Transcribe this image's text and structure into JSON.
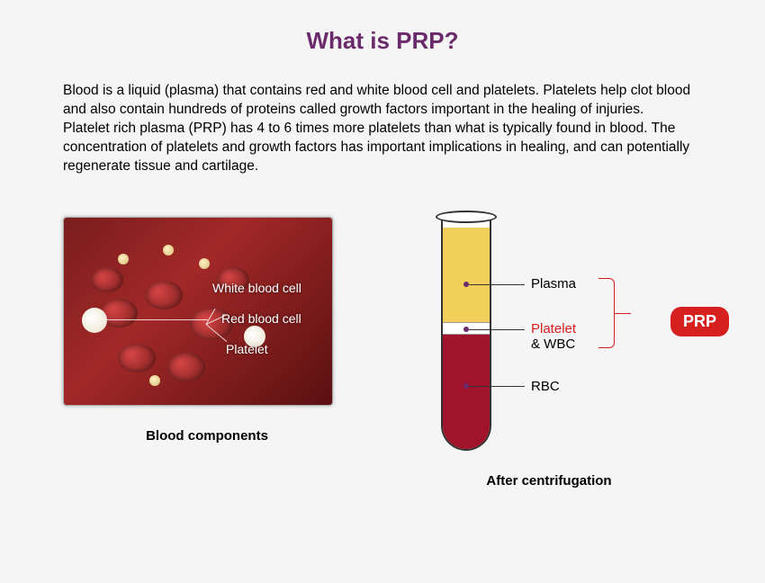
{
  "title": {
    "text": "What is PRP?",
    "color": "#6b2a6b"
  },
  "paragraph": "Blood is a liquid (plasma) that contains red and white blood cell and platelets. Platelets help clot blood and also contain hundreds of proteins called growth factors important in the healing of injuries.\nPlatelet rich plasma (PRP) has 4 to 6 times more platelets than what is typically found in blood. The concentration of platelets and growth factors has important implications in healing, and can potentially regenerate tissue and cartilage.",
  "left_figure": {
    "caption": "Blood components",
    "labels": {
      "white_blood_cell": "White blood cell",
      "red_blood_cell": "Red blood cell",
      "platelet": "Platelet"
    }
  },
  "right_figure": {
    "caption": "After centrifugation",
    "layers": {
      "plasma": {
        "label": "Plasma",
        "color": "#f2cf5b"
      },
      "platelet": {
        "label": "Platelet",
        "label_color": "#d61f1f",
        "sub": "& WBC",
        "color": "#ffffff"
      },
      "rbc": {
        "label": "RBC",
        "color": "#a0132a"
      }
    },
    "badge": {
      "text": "PRP",
      "bg": "#d61f1f",
      "fg": "#ffffff"
    }
  },
  "colors": {
    "page_bg": "#f5f5f5",
    "text": "#000000"
  }
}
